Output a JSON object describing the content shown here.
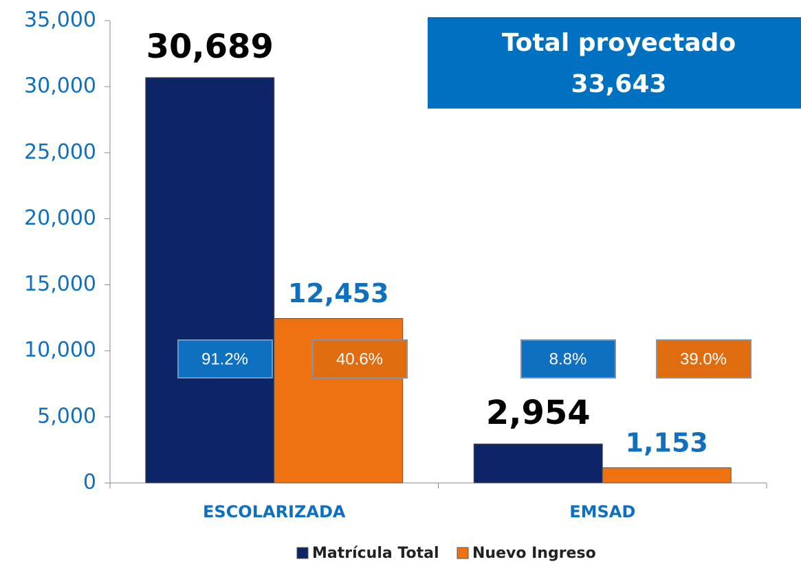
{
  "chart_data": {
    "type": "bar",
    "categories": [
      "ESCOLARIZADA",
      "EMSAD"
    ],
    "series": [
      {
        "name": "Matrícula Total",
        "color": "#0d2566",
        "values": [
          30689,
          2954
        ],
        "value_labels": [
          "30,689",
          "2,954"
        ],
        "shares": [
          91.2,
          8.8
        ],
        "share_labels": [
          "91.2%",
          "8.8%"
        ],
        "share_color": "#1070c0"
      },
      {
        "name": "Nuevo Ingreso",
        "color": "#ee7212",
        "values": [
          12453,
          1153
        ],
        "value_labels": [
          "12,453",
          "1,153"
        ],
        "shares": [
          40.6,
          39.0
        ],
        "share_labels": [
          "40.6%",
          "39.0%"
        ],
        "share_color": "#e06c10"
      }
    ],
    "ylim": [
      0,
      35000
    ],
    "yticks": [
      0,
      {
        "value": 5000,
        "label": "5,000"
      },
      {
        "value": 10000,
        "label": "10,000"
      },
      {
        "value": 15000,
        "label": "15,000"
      },
      {
        "value": 20000,
        "label": "20,000"
      },
      {
        "value": 25000,
        "label": "25,000"
      },
      {
        "value": 30000,
        "label": "30,000"
      },
      {
        "value": 35000,
        "label": "35,000"
      }
    ],
    "annotation": {
      "text": "Total  proyectado",
      "value": 33643,
      "label": "33,643"
    },
    "legend": "bottom"
  }
}
